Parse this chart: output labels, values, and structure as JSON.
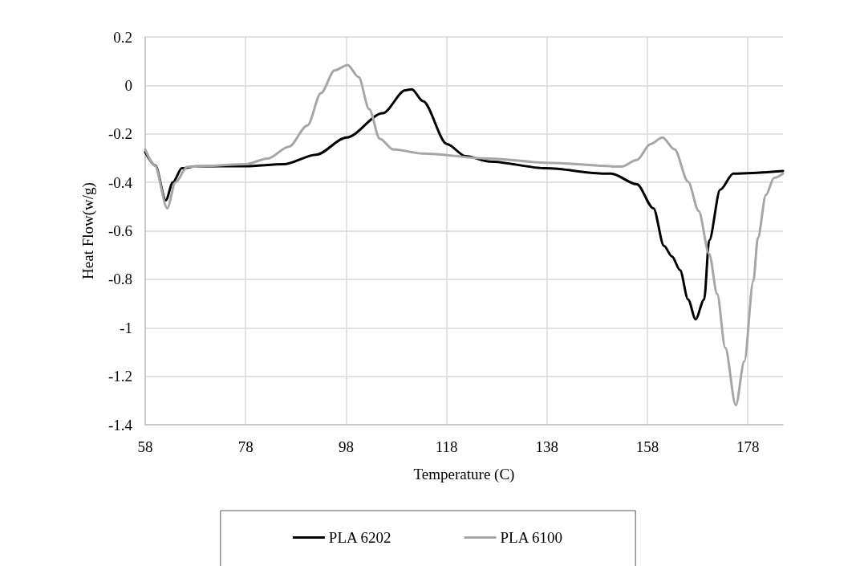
{
  "chart_data": {
    "type": "line",
    "xlabel": "Temperature (C)",
    "ylabel": "Heat Flow(w/g)",
    "xlim": [
      58,
      185
    ],
    "xticks": [
      58,
      78,
      98,
      118,
      138,
      158,
      178
    ],
    "ylim": [
      -1.4,
      0.2
    ],
    "yticks": [
      -1.4,
      -1.2,
      -1,
      -0.8,
      -0.6,
      -0.4,
      -0.2,
      0,
      0.2
    ],
    "grid": true,
    "legend": "bottom",
    "marker": "none",
    "line_style": "solid",
    "series": [
      {
        "name": "PLA 6202",
        "color": "#000000",
        "x": [
          58,
          60,
          62.1,
          63.5,
          65.3,
          68,
          78,
          85.6,
          92,
          98.1,
          105.3,
          109.8,
          111.1,
          113.3,
          118.1,
          121.8,
          126.6,
          137.8,
          149.5,
          150.8,
          155.9,
          159.2,
          161.3,
          162.9,
          164.5,
          166.1,
          167.6,
          169.3,
          170.3,
          172.5,
          175.1,
          185
        ],
        "values": [
          -0.275,
          -0.33,
          -0.474,
          -0.4,
          -0.342,
          -0.334,
          -0.333,
          -0.325,
          -0.286,
          -0.215,
          -0.115,
          -0.02,
          -0.016,
          -0.065,
          -0.242,
          -0.292,
          -0.314,
          -0.342,
          -0.364,
          -0.364,
          -0.408,
          -0.507,
          -0.662,
          -0.706,
          -0.762,
          -0.883,
          -0.965,
          -0.883,
          -0.64,
          -0.43,
          -0.364,
          -0.353
        ]
      },
      {
        "name": "PLA 6100",
        "color": "#a6a6a6",
        "x": [
          58,
          59.9,
          62.4,
          64,
          66.4,
          78,
          82.4,
          86.6,
          90.3,
          93,
          95.7,
          98.3,
          100.5,
          102.6,
          104.7,
          107.4,
          113.3,
          126.6,
          137.8,
          152.8,
          155.9,
          158.6,
          161,
          163.4,
          166.1,
          168.2,
          170.3,
          171.9,
          173.5,
          175.6,
          177.3,
          179.1,
          180,
          181.6,
          183.2,
          185
        ],
        "values": [
          -0.264,
          -0.33,
          -0.507,
          -0.4,
          -0.336,
          -0.325,
          -0.302,
          -0.253,
          -0.165,
          -0.032,
          0.062,
          0.084,
          0.034,
          -0.098,
          -0.22,
          -0.264,
          -0.281,
          -0.302,
          -0.319,
          -0.335,
          -0.308,
          -0.242,
          -0.215,
          -0.264,
          -0.397,
          -0.518,
          -0.695,
          -0.861,
          -1.082,
          -1.32,
          -1.138,
          -0.806,
          -0.629,
          -0.452,
          -0.382,
          -0.364
        ]
      }
    ]
  }
}
